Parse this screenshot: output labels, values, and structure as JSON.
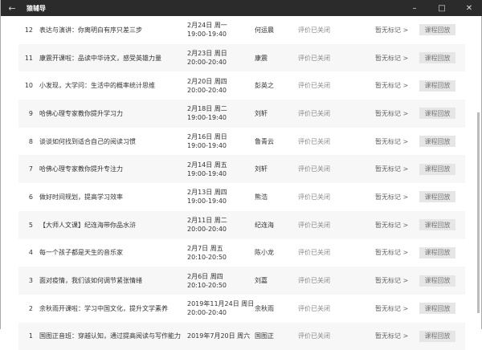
{
  "window": {
    "title": "猿辅导",
    "back_icon": "arrow-left-icon",
    "minimize": "–",
    "maximize": "□",
    "close": "✕"
  },
  "rows": [
    {
      "num": "12",
      "name": "表达与演讲：你离明白有序只差三步",
      "date": "2月24日 周一",
      "time": "19:00-19:40",
      "teacher": "何运晨",
      "eval": "评价已关闭",
      "mark": "暂无标记 >",
      "button": "课程回放"
    },
    {
      "num": "11",
      "name": "康震开课啦：品读中华诗文，感受英雄力量",
      "date": "2月23日 周日",
      "time": "20:00-20:40",
      "teacher": "康震",
      "eval": "评价已关闭",
      "mark": "暂无标记 >",
      "button": "课程回放"
    },
    {
      "num": "10",
      "name": "小发现，大学问：生活中的概率统计思维",
      "date": "2月20日 周四",
      "time": "20:00-20:40",
      "teacher": "彭英之",
      "eval": "评价已关闭",
      "mark": "暂无标记 >",
      "button": "课程回放"
    },
    {
      "num": "9",
      "name": "哈佛心理专家教你提升学习力",
      "date": "2月18日 周二",
      "time": "19:00-19:40",
      "teacher": "刘轩",
      "eval": "评价已关闭",
      "mark": "暂无标记 >",
      "button": "课程回放"
    },
    {
      "num": "8",
      "name": "谈谈如何找到适合自己的阅读习惯",
      "date": "2月16日 周日",
      "time": "19:00-19:40",
      "teacher": "鲁青云",
      "eval": "评价已关闭",
      "mark": "暂无标记 >",
      "button": "课程回放"
    },
    {
      "num": "7",
      "name": "哈佛心理专家教你提升专注力",
      "date": "2月14日 周五",
      "time": "19:00-19:40",
      "teacher": "刘轩",
      "eval": "评价已关闭",
      "mark": "暂无标记 >",
      "button": "课程回放"
    },
    {
      "num": "6",
      "name": "做好时间规划，提高学习效率",
      "date": "2月13日 周四",
      "time": "19:00-19:40",
      "teacher": "熊浩",
      "eval": "评价已关闭",
      "mark": "暂无标记 >",
      "button": "课程回放"
    },
    {
      "num": "5",
      "name": "【大师人文课】纪连海带你品水浒",
      "date": "2月11日 周二",
      "time": "20:00-20:40",
      "teacher": "纪连海",
      "eval": "评价已关闭",
      "mark": "暂无标记 >",
      "button": "课程回放"
    },
    {
      "num": "4",
      "name": "每一个孩子都是天生的音乐家",
      "date": "2月7日 周五",
      "time": "20:10-20:50",
      "teacher": "陈小龙",
      "eval": "评价已关闭",
      "mark": "暂无标记 >",
      "button": "课程回放"
    },
    {
      "num": "3",
      "name": "面对疫情，我们该如何调节紧张情绪",
      "date": "2月6日 周四",
      "time": "20:10-20:50",
      "teacher": "刘嘉",
      "eval": "评价已关闭",
      "mark": "暂无标记 >",
      "button": "课程回放"
    },
    {
      "num": "2",
      "name": "余秋雨开课啦：学习中国文化，提升文学素养",
      "date": "2019年11月24日 周日",
      "time": "20:00-20:40",
      "teacher": "余秋雨",
      "eval": "评价已关闭",
      "mark": "暂无标记 >",
      "button": "课程回放"
    },
    {
      "num": "1",
      "name": "国图正音班：穿越认知，通过提高阅读与写作能力",
      "date": "2019年7月20日 周六",
      "time": "",
      "teacher": "国图正",
      "eval": "评价已关闭",
      "mark": "暂无标记 >",
      "button": "课程回放"
    }
  ]
}
